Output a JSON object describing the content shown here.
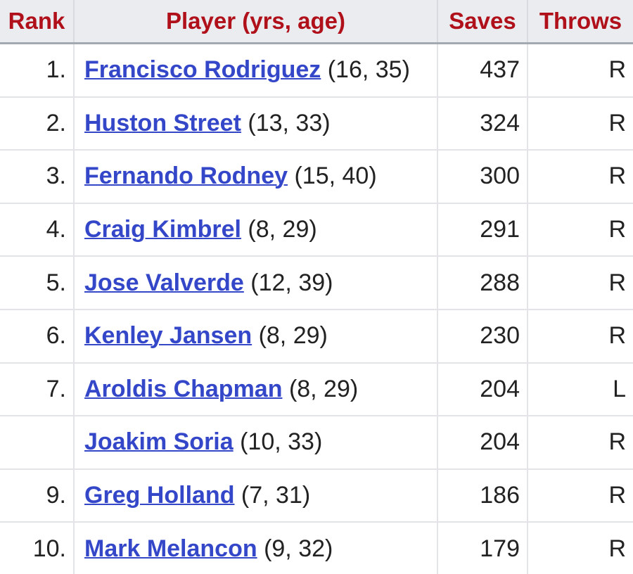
{
  "table": {
    "header": [
      "Rank",
      "Player (yrs, age)",
      "Saves",
      "Throws"
    ],
    "rows": [
      [
        "1.",
        "Francisco Rodriguez",
        "(16, 35)",
        437,
        "R"
      ],
      [
        "2.",
        "Huston Street",
        "(13, 33)",
        324,
        "R"
      ],
      [
        "3.",
        "Fernando Rodney",
        "(15, 40)",
        300,
        "R"
      ],
      [
        "4.",
        "Craig Kimbrel",
        "(8, 29)",
        291,
        "R"
      ],
      [
        "5.",
        "Jose Valverde",
        "(12, 39)",
        288,
        "R"
      ],
      [
        "6.",
        "Kenley Jansen",
        "(8, 29)",
        230,
        "R"
      ],
      [
        "7.",
        "Aroldis Chapman",
        "(8, 29)",
        204,
        "L"
      ],
      [
        null,
        "Joakim Soria",
        "(10, 33)",
        204,
        "R"
      ],
      [
        "9.",
        "Greg Holland",
        "(7, 31)",
        186,
        "R"
      ],
      [
        "10.",
        "Mark Melancon",
        "(9, 32)",
        179,
        "R"
      ]
    ]
  }
}
